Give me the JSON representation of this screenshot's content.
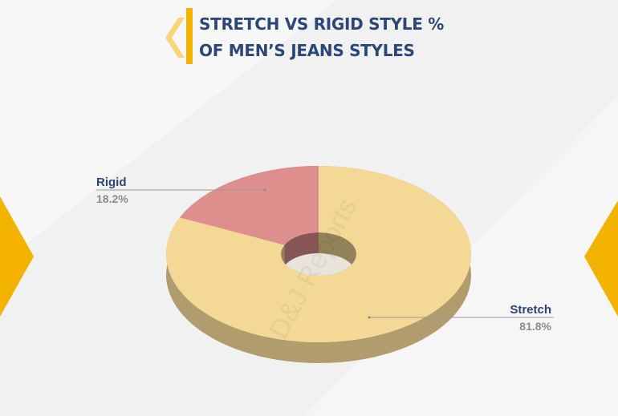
{
  "chart_data": {
    "type": "pie",
    "title": "STRETCH VS RIGID STYLE % OF MEN’S JEANS STYLES",
    "categories": [
      "Rigid",
      "Stretch"
    ],
    "values": [
      18.2,
      81.8
    ],
    "value_labels": [
      "18.2%",
      "81.8%"
    ],
    "colors": [
      "#df8e8e",
      "#f4d896"
    ],
    "watermark": "D&J Reports"
  }
}
